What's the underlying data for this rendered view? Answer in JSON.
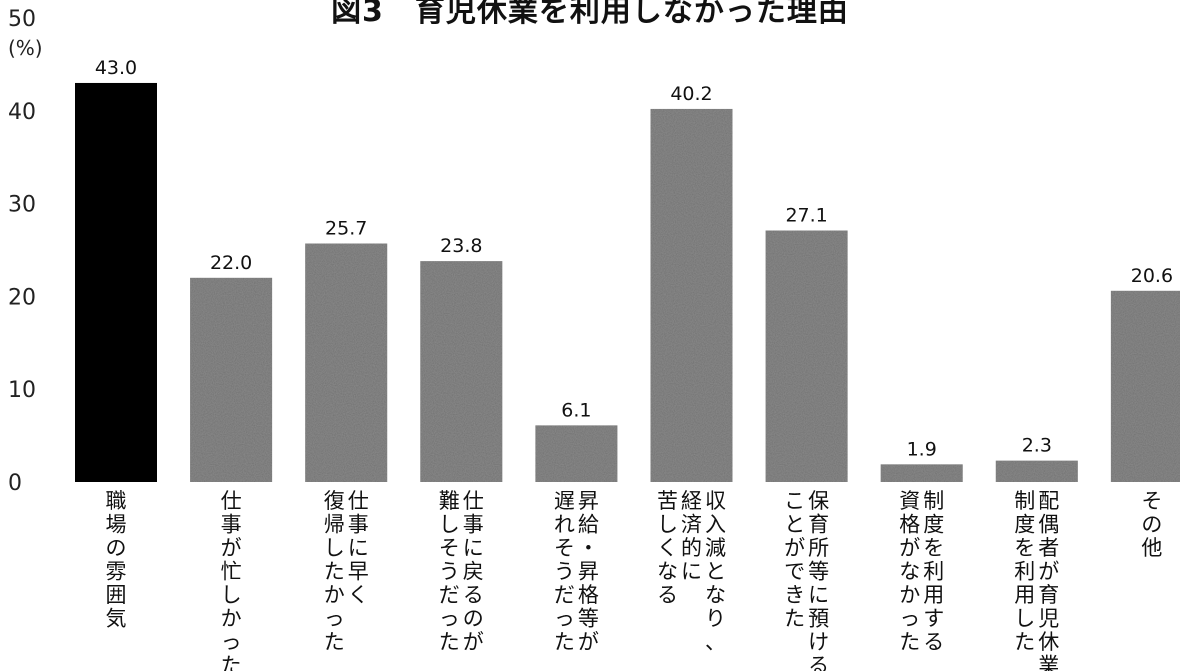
{
  "chart_data": {
    "type": "bar",
    "title": "図3　育児休業を利用しなかった理由",
    "ylabel": "(%)",
    "ylim": [
      0,
      50
    ],
    "yticks": [
      0,
      10,
      20,
      30,
      40,
      50
    ],
    "grid": false,
    "categories": [
      "職場の雰囲気",
      "仕事が忙しかった",
      "仕事に早く復帰したかった",
      "仕事に戻るのが難しそうだった",
      "昇給・昇格等が遅れそうだった",
      "収入減となり、経済的に苦しくなる",
      "保育所等に預けることができた",
      "制度を利用する資格がなかった",
      "配偶者が育児休業制度を利用した",
      "その他"
    ],
    "category_lines": [
      [
        "職場の雰囲気"
      ],
      [
        "仕事が忙しかった"
      ],
      [
        "仕事に早く",
        "復帰したかった"
      ],
      [
        "仕事に戻るのが",
        "難しそうだった"
      ],
      [
        "昇給・昇格等が",
        "遅れそうだった"
      ],
      [
        "収入減となり、",
        "経済的に",
        "苦しくなる"
      ],
      [
        "保育所等に預ける",
        "ことができた"
      ],
      [
        "制度を利用する",
        "資格がなかった"
      ],
      [
        "配偶者が育児休業",
        "制度を利用した"
      ],
      [
        "その他"
      ]
    ],
    "values": [
      43.0,
      22.0,
      25.7,
      23.8,
      6.1,
      40.2,
      27.1,
      1.9,
      2.3,
      20.6
    ],
    "value_labels": [
      "43.0",
      "22.0",
      "25.7",
      "23.8",
      "6.1",
      "40.2",
      "27.1",
      "1.9",
      "2.3",
      "20.6"
    ],
    "colors": {
      "highlight": "#000000",
      "bar": "#6f6f6f"
    }
  }
}
